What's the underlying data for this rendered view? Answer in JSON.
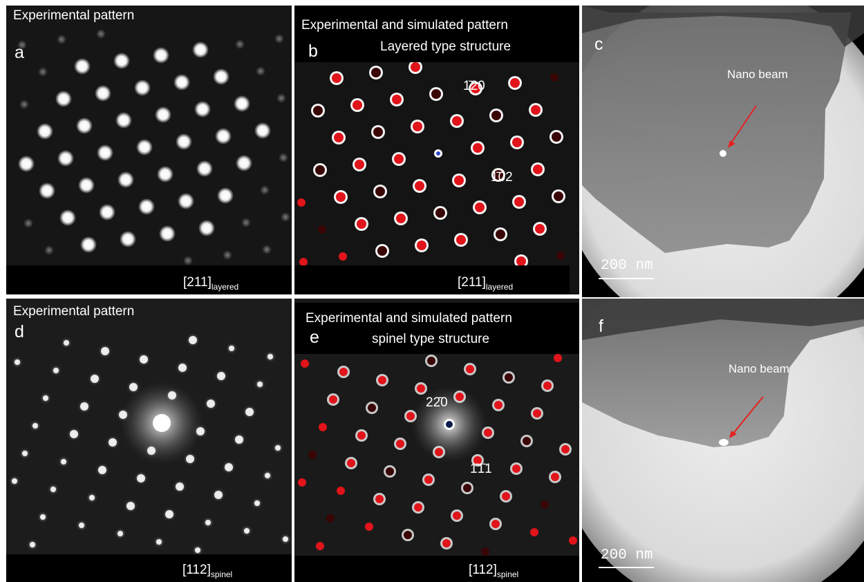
{
  "panel_a": {
    "title": "Experimental pattern",
    "letter": "a",
    "zone_main": "[211]",
    "zone_sub": "layered"
  },
  "panel_b": {
    "title_line1": "Experimental and simulated pattern",
    "title_line2": "Layered type structure",
    "letter": "b",
    "hkl_1": "1̄20",
    "hkl_2": "1̄02",
    "zone_main": "[211]",
    "zone_sub": "layered"
  },
  "panel_c": {
    "letter": "c",
    "annotation": "Nano beam",
    "scale_text": "200 nm"
  },
  "panel_d": {
    "title": "Experimental pattern",
    "letter": "d",
    "zone_main": "[112]",
    "zone_sub": "spinel"
  },
  "panel_e": {
    "title_line1": "Experimental and simulated pattern",
    "title_line2": "spinel type structure",
    "letter": "e",
    "hkl_1": "22̄0",
    "hkl_2": "1̄1̄1",
    "zone_main": "[112]",
    "zone_sub": "spinel"
  },
  "panel_f": {
    "letter": "f",
    "annotation": "Nano beam",
    "scale_text": "200 nm"
  },
  "colors": {
    "simulated_spot": "#e0141a",
    "dark_spot": "#3a0505",
    "arrow": "#e52020"
  }
}
